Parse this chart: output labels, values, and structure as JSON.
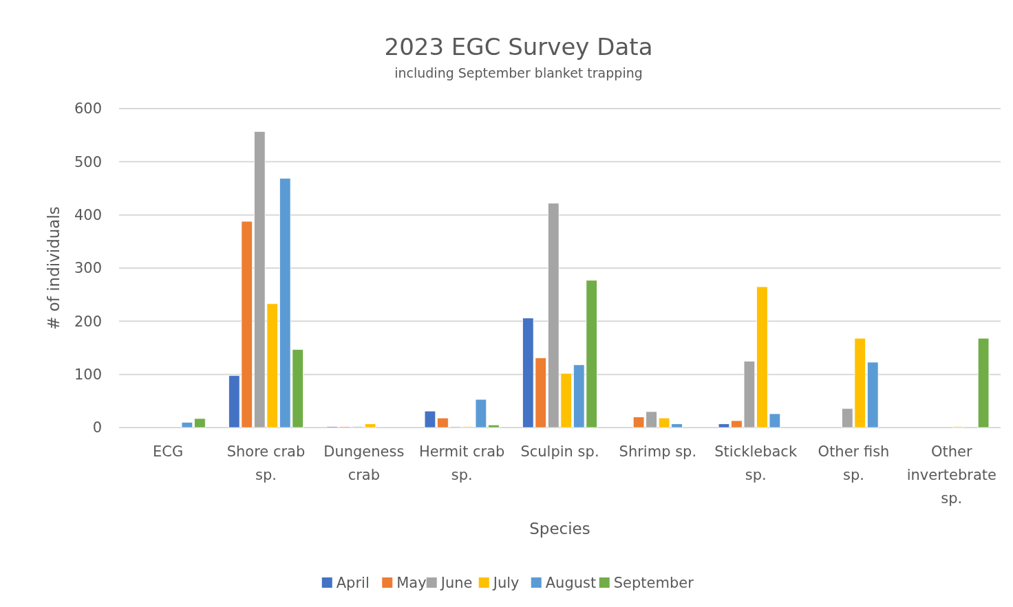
{
  "chart_data": {
    "type": "bar",
    "title": "2023 EGC Survey Data",
    "subtitle": "including September blanket trapping",
    "xlabel": "Species",
    "ylabel": "# of individuals",
    "categories": [
      "ECG",
      "Shore crab sp.",
      "Dungeness crab",
      "Hermit crab sp.",
      "Sculpin sp.",
      "Shrimp sp.",
      "Stickleback sp.",
      "Other fish sp.",
      "Other invertebrate sp."
    ],
    "series": [
      {
        "name": "April",
        "color": "#4472c4",
        "values": [
          0,
          98,
          2,
          31,
          206,
          0,
          7,
          0,
          0
        ]
      },
      {
        "name": "May",
        "color": "#ed7d31",
        "values": [
          0,
          388,
          2,
          18,
          131,
          20,
          13,
          0,
          0
        ]
      },
      {
        "name": "June",
        "color": "#a5a5a5",
        "values": [
          0,
          557,
          2,
          2,
          422,
          30,
          125,
          36,
          0
        ]
      },
      {
        "name": "July",
        "color": "#ffc000",
        "values": [
          0,
          233,
          7,
          2,
          102,
          18,
          265,
          168,
          2
        ]
      },
      {
        "name": "August",
        "color": "#5b9bd5",
        "values": [
          10,
          469,
          0,
          53,
          118,
          7,
          26,
          123,
          0
        ]
      },
      {
        "name": "September",
        "color": "#70ad47",
        "values": [
          17,
          147,
          0,
          5,
          277,
          0,
          0,
          0,
          168
        ]
      }
    ],
    "ylim": [
      0,
      600
    ],
    "yticks": [
      0,
      100,
      200,
      300,
      400,
      500,
      600
    ],
    "grid": "y",
    "legend": "bottom"
  }
}
